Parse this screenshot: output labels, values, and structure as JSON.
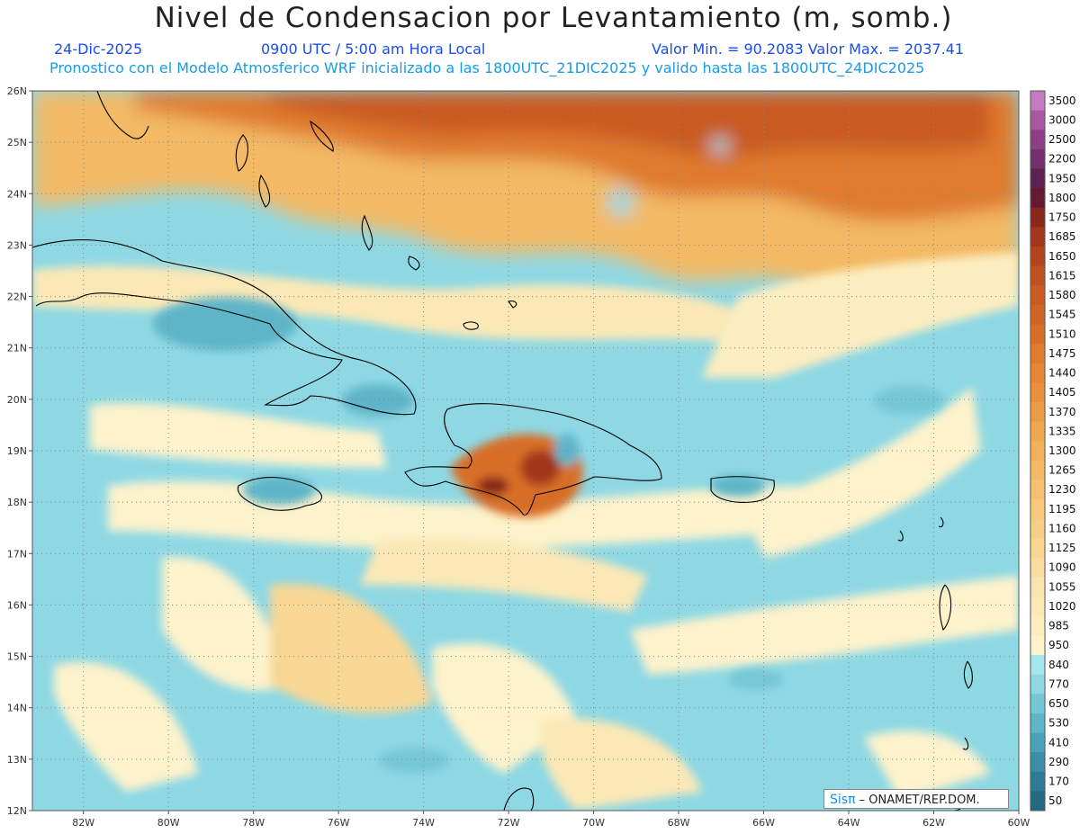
{
  "header": {
    "title": "Nivel de Condensacion por Levantamiento (m, somb.)",
    "date": "24-Dic-2025",
    "time": "0900 UTC / 5:00 am Hora Local",
    "min_max": "Valor Min. = 90.2083  Valor Max. = 2037.41",
    "forecast": "Pronostico con el Modelo Atmosferico WRF inicializado a las 1800UTC_21DIC2025 y valido hasta las  1800UTC_24DIC2025"
  },
  "map": {
    "lat_labels": [
      "26N",
      "25N",
      "24N",
      "23N",
      "22N",
      "21N",
      "20N",
      "19N",
      "18N",
      "17N",
      "16N",
      "15N",
      "14N",
      "13N",
      "12N"
    ],
    "lon_labels": [
      "82W",
      "80W",
      "78W",
      "76W",
      "74W",
      "72W",
      "70W",
      "68W",
      "66W",
      "64W",
      "62W",
      "60W"
    ],
    "lat_range": [
      12,
      26
    ],
    "lon_range": [
      -83.2,
      -60
    ],
    "grid": "dotted"
  },
  "colorbar": {
    "levels": [
      "3500",
      "3000",
      "2500",
      "2200",
      "1950",
      "1800",
      "1750",
      "1685",
      "1650",
      "1615",
      "1580",
      "1545",
      "1510",
      "1475",
      "1440",
      "1405",
      "1370",
      "1335",
      "1300",
      "1265",
      "1230",
      "1195",
      "1160",
      "1125",
      "1090",
      "1055",
      "1020",
      "985",
      "950",
      "840",
      "770",
      "650",
      "530",
      "410",
      "290",
      "170",
      "50"
    ],
    "colors": [
      "#c47bc0",
      "#a9579f",
      "#8d3f85",
      "#74306c",
      "#5c2250",
      "#651a30",
      "#88281c",
      "#a3361c",
      "#b3441e",
      "#bf5020",
      "#c95a22",
      "#d06424",
      "#d86e28",
      "#df7a2e",
      "#e48634",
      "#e9913a",
      "#ec9c44",
      "#efa64f",
      "#f1b05a",
      "#f3b965",
      "#f5c170",
      "#f6c97c",
      "#f7d088",
      "#f8d794",
      "#f9dda0",
      "#fae3ac",
      "#fbe8b6",
      "#fcedc0",
      "#fdf2cb",
      "#a6e6ef",
      "#8ed8e4",
      "#76c7d6",
      "#5fb5c8",
      "#4aa2b8",
      "#3a8ea6",
      "#2d7b94",
      "#216a82"
    ]
  },
  "credit": {
    "logo": "Sisπ",
    "text": " – ONAMET/REP.DOM."
  }
}
